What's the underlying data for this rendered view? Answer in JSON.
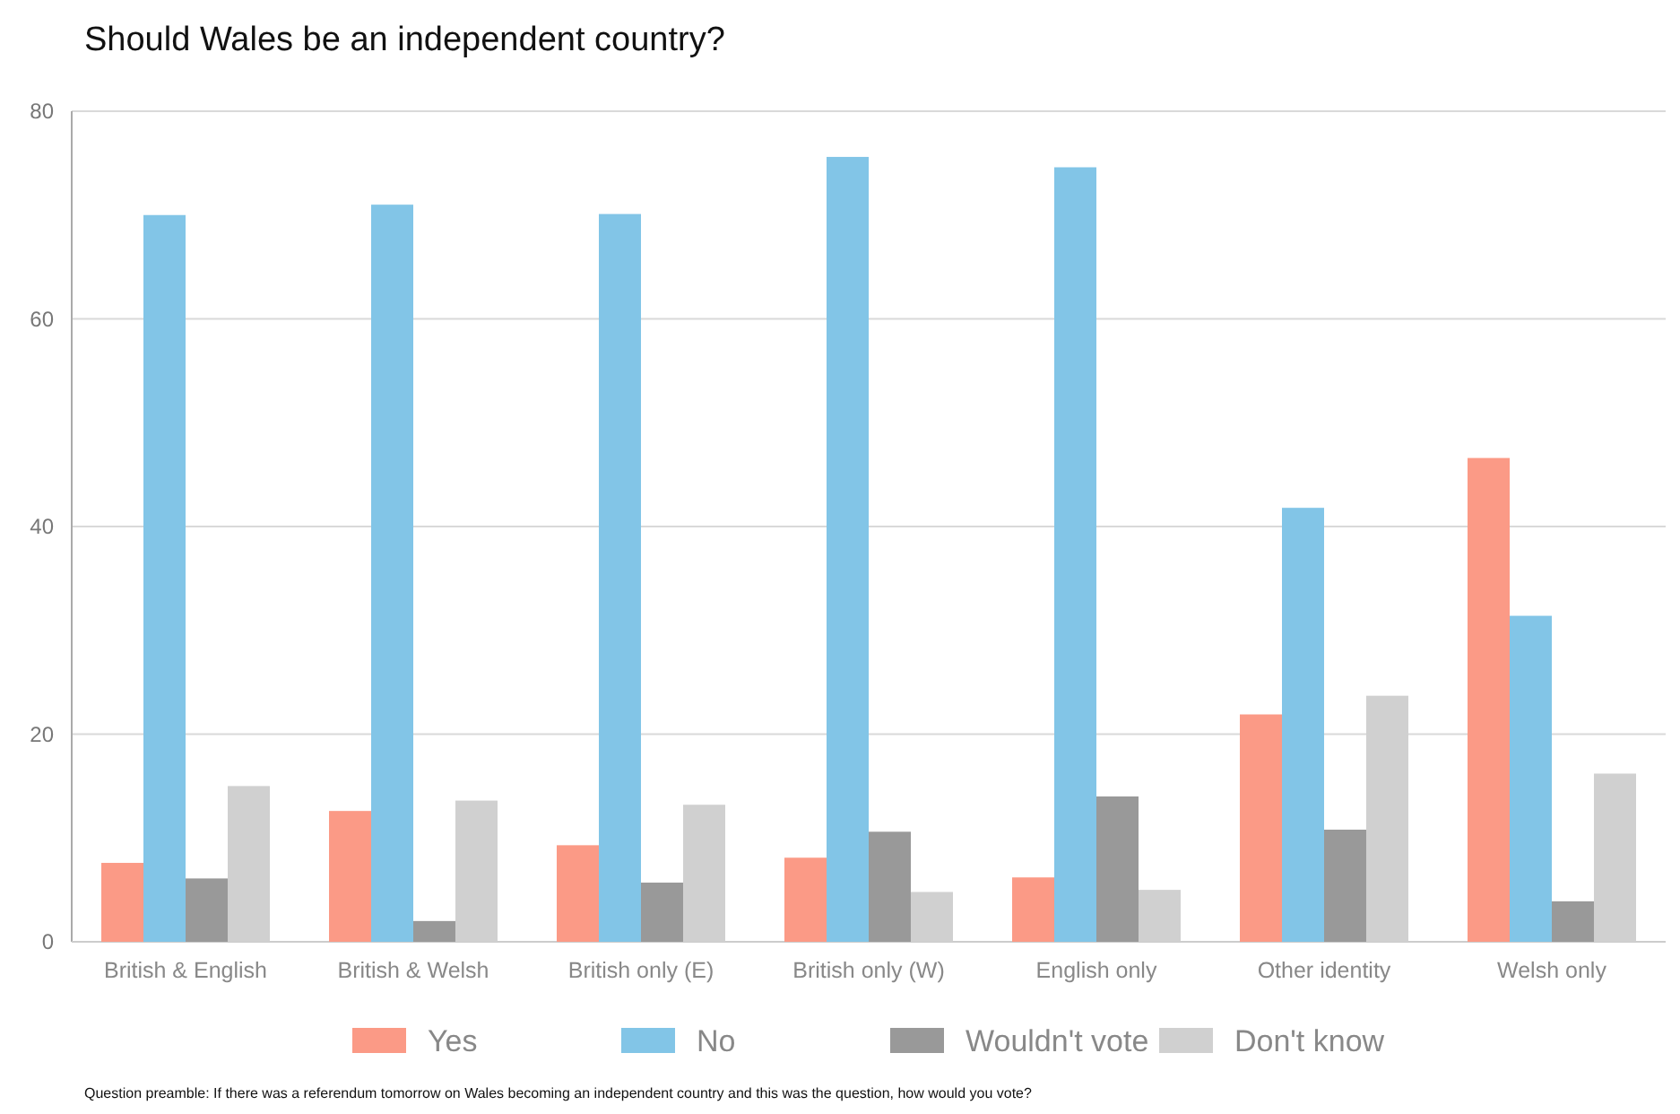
{
  "chart_data": {
    "type": "bar",
    "title": "Should Wales be an independent country?",
    "categories": [
      "British & English",
      "British & Welsh",
      "British only (E)",
      "British only (W)",
      "English only",
      "Other identity",
      "Welsh only"
    ],
    "series": [
      {
        "name": "Yes",
        "color": "#fb9a86",
        "values": [
          7.6,
          12.6,
          9.3,
          8.1,
          6.2,
          21.9,
          46.6
        ]
      },
      {
        "name": "No",
        "color": "#82c5e7",
        "values": [
          70,
          71,
          70.1,
          75.6,
          74.6,
          41.8,
          31.4
        ]
      },
      {
        "name": "Wouldn't vote",
        "color": "#999999",
        "values": [
          6.1,
          2,
          5.7,
          10.6,
          14,
          10.8,
          3.9
        ]
      },
      {
        "name": "Don't know",
        "color": "#d0d0d0",
        "values": [
          15,
          13.6,
          13.2,
          4.8,
          5,
          23.7,
          16.2
        ]
      }
    ],
    "ylim": [
      0,
      80
    ],
    "yticks": [
      0,
      20,
      40,
      60,
      80
    ],
    "grid": "y",
    "legend": "bottom",
    "annotations": [
      "Question preamble: If there was a referendum tomorrow on Wales becoming an independent country and this was the question, how would you vote?"
    ]
  }
}
